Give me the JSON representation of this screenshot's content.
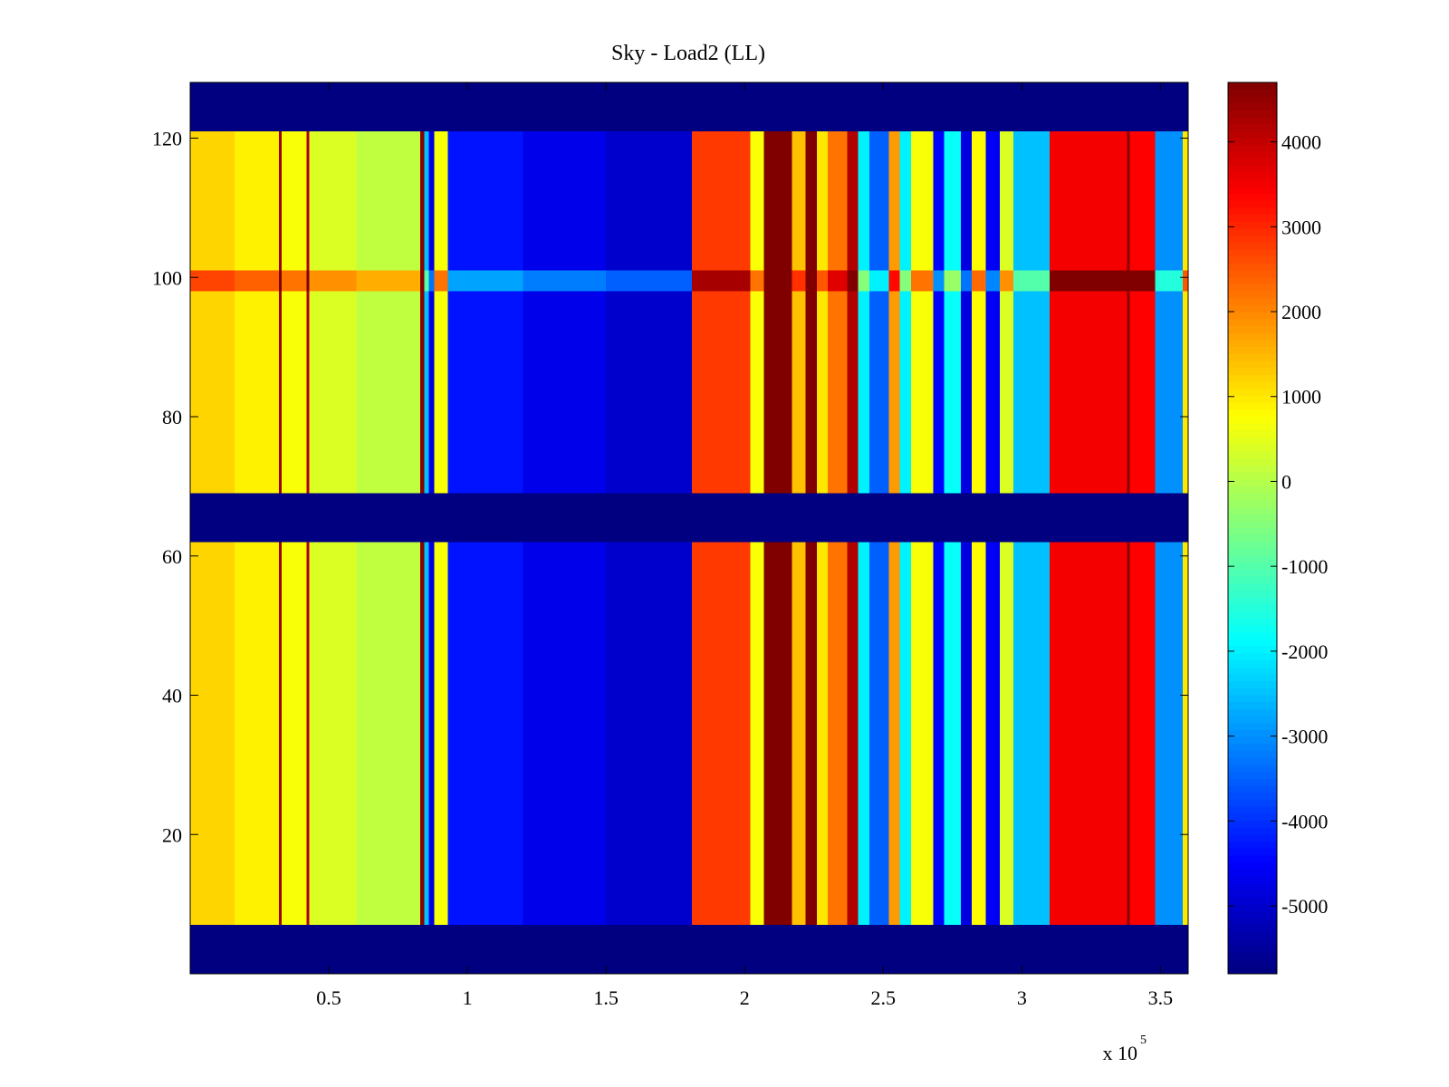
{
  "chart_data": {
    "type": "heatmap",
    "title": "Sky - Load2 (LL)",
    "xlabel": "",
    "ylabel": "",
    "x_multiplier": {
      "base": "x 10",
      "exponent": "5"
    },
    "x_range": [
      0,
      360000
    ],
    "y_range": [
      0,
      128
    ],
    "x_ticks": [
      {
        "value": 50000,
        "label": "0.5"
      },
      {
        "value": 100000,
        "label": "1"
      },
      {
        "value": 150000,
        "label": "1.5"
      },
      {
        "value": 200000,
        "label": "2"
      },
      {
        "value": 250000,
        "label": "2.5"
      },
      {
        "value": 300000,
        "label": "3"
      },
      {
        "value": 350000,
        "label": "3.5"
      }
    ],
    "y_ticks": [
      {
        "value": 20,
        "label": "20"
      },
      {
        "value": 40,
        "label": "40"
      },
      {
        "value": 60,
        "label": "60"
      },
      {
        "value": 80,
        "label": "80"
      },
      {
        "value": 100,
        "label": "100"
      },
      {
        "value": 120,
        "label": "120"
      }
    ],
    "colorbar": {
      "colormap": "jet",
      "range": [
        -5800,
        4700
      ],
      "ticks": [
        {
          "value": 4000,
          "label": "4000"
        },
        {
          "value": 3000,
          "label": "3000"
        },
        {
          "value": 2000,
          "label": "2000"
        },
        {
          "value": 1000,
          "label": "1000"
        },
        {
          "value": 0,
          "label": "0"
        },
        {
          "value": -1000,
          "label": "-1000"
        },
        {
          "value": -2000,
          "label": "-2000"
        },
        {
          "value": -3000,
          "label": "-3000"
        },
        {
          "value": -4000,
          "label": "-4000"
        },
        {
          "value": -5000,
          "label": "-5000"
        }
      ]
    },
    "masked_rows": [
      [
        0,
        7
      ],
      [
        62,
        69
      ],
      [
        121,
        128
      ]
    ],
    "masked_value": -5800,
    "columns": [
      {
        "x0": 0,
        "x1": 16000,
        "value": 1200
      },
      {
        "x0": 16000,
        "x1": 32000,
        "value": 900
      },
      {
        "x0": 32000,
        "x1": 33000,
        "value": 4400
      },
      {
        "x0": 33000,
        "x1": 42000,
        "value": 700
      },
      {
        "x0": 42000,
        "x1": 43000,
        "value": 4200
      },
      {
        "x0": 43000,
        "x1": 60000,
        "value": 400
      },
      {
        "x0": 60000,
        "x1": 83000,
        "value": 100
      },
      {
        "x0": 83000,
        "x1": 84500,
        "value": 4600
      },
      {
        "x0": 84500,
        "x1": 86000,
        "value": -2500
      },
      {
        "x0": 86000,
        "x1": 88000,
        "value": -4800
      },
      {
        "x0": 88000,
        "x1": 93000,
        "value": 700
      },
      {
        "x0": 93000,
        "x1": 120000,
        "value": -4300
      },
      {
        "x0": 120000,
        "x1": 150000,
        "value": -4700
      },
      {
        "x0": 150000,
        "x1": 181000,
        "value": -5000
      },
      {
        "x0": 181000,
        "x1": 202000,
        "value": 2800
      },
      {
        "x0": 202000,
        "x1": 207000,
        "value": 700
      },
      {
        "x0": 207000,
        "x1": 217000,
        "value": 4700
      },
      {
        "x0": 217000,
        "x1": 222000,
        "value": 1400
      },
      {
        "x0": 222000,
        "x1": 226000,
        "value": 4700
      },
      {
        "x0": 226000,
        "x1": 230000,
        "value": 1000
      },
      {
        "x0": 230000,
        "x1": 237000,
        "value": 2200
      },
      {
        "x0": 237000,
        "x1": 241000,
        "value": 4200
      },
      {
        "x0": 241000,
        "x1": 245000,
        "value": -2000
      },
      {
        "x0": 245000,
        "x1": 252000,
        "value": -3500
      },
      {
        "x0": 252000,
        "x1": 256000,
        "value": 1800
      },
      {
        "x0": 256000,
        "x1": 260000,
        "value": -2000
      },
      {
        "x0": 260000,
        "x1": 268000,
        "value": 700
      },
      {
        "x0": 268000,
        "x1": 272000,
        "value": -4500
      },
      {
        "x0": 272000,
        "x1": 278000,
        "value": -1800
      },
      {
        "x0": 278000,
        "x1": 282000,
        "value": -4800
      },
      {
        "x0": 282000,
        "x1": 287000,
        "value": 800
      },
      {
        "x0": 287000,
        "x1": 292000,
        "value": -4600
      },
      {
        "x0": 292000,
        "x1": 297000,
        "value": 400
      },
      {
        "x0": 297000,
        "x1": 310000,
        "value": -2500
      },
      {
        "x0": 310000,
        "x1": 338000,
        "value": 3500
      },
      {
        "x0": 338000,
        "x1": 339000,
        "value": 4600
      },
      {
        "x0": 339000,
        "x1": 348000,
        "value": 3400
      },
      {
        "x0": 348000,
        "x1": 358000,
        "value": -3000
      },
      {
        "x0": 358000,
        "x1": 360000,
        "value": 1000
      }
    ],
    "row_bands": [
      {
        "y0": 98,
        "y1": 101,
        "offset": 1500
      }
    ]
  }
}
